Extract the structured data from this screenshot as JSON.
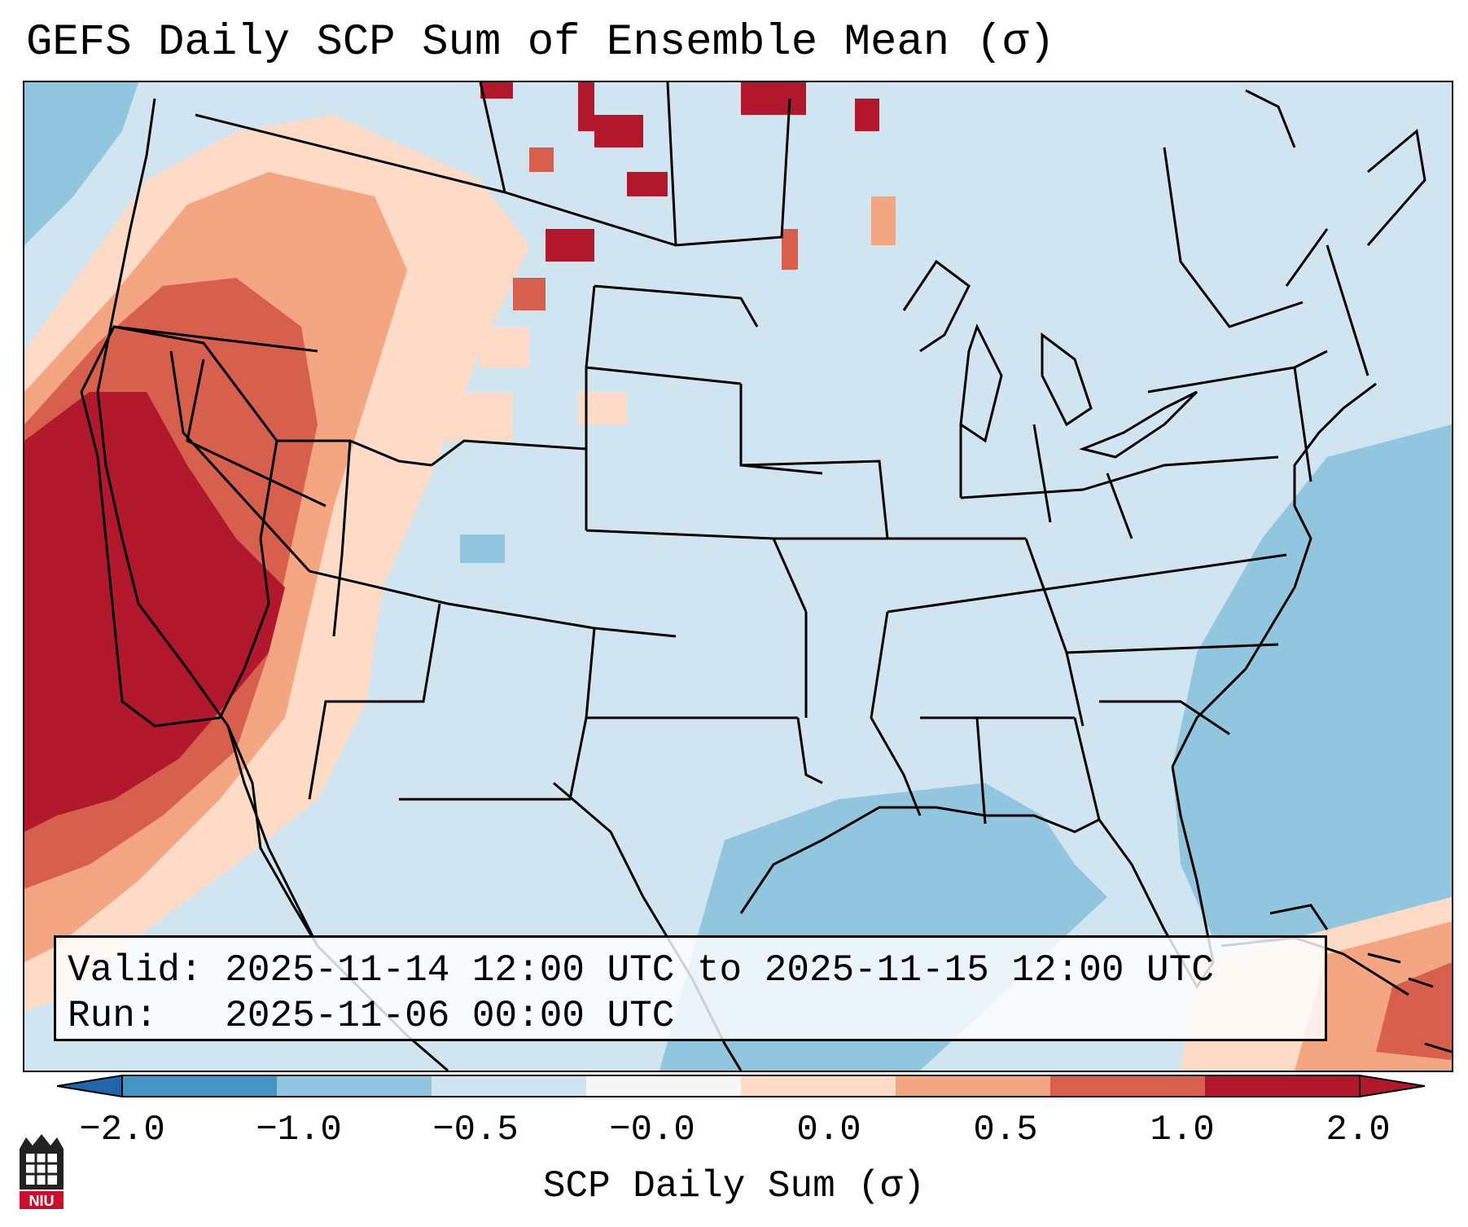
{
  "title": "GEFS Daily SCP Sum of Ensemble Mean (σ)",
  "info": {
    "valid_label": "Valid:",
    "valid_value": "2025-11-14 12:00 UTC to 2025-11-15 12:00 UTC",
    "run_label": "Run:",
    "run_value": "2025-11-06 00:00 UTC"
  },
  "colorbar": {
    "label": "SCP Daily Sum (σ)",
    "ticks": [
      "−2.0",
      "−1.0",
      "−0.5",
      "−0.0",
      "0.0",
      "0.5",
      "1.0",
      "2.0"
    ],
    "colors": [
      "#4393c3",
      "#92c5de",
      "#d1e5f0",
      "#f7f7f7",
      "#fddbc7",
      "#f4a582",
      "#d6604d",
      "#b2182b"
    ],
    "under_color": "#2166ac",
    "over_color": "#b2182b"
  },
  "map_colors": {
    "background": "#d1e5f0",
    "ocean_low": "#92c5de",
    "light_red": "#fddbc7",
    "mid_red": "#f4a582",
    "red": "#d6604d",
    "dark_red": "#b2182b"
  },
  "logo": {
    "text": "NIU"
  }
}
